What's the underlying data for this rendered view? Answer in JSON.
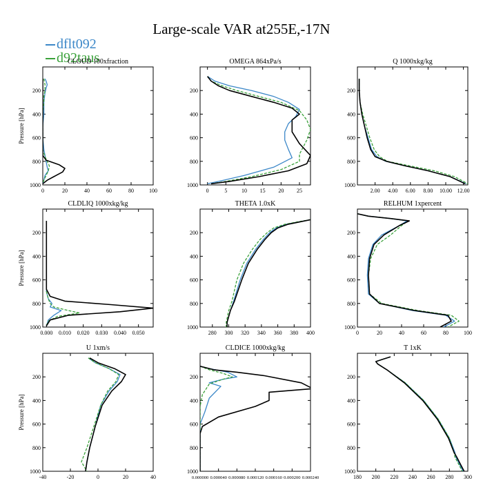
{
  "title": "Large-scale VAR at255E,-17N",
  "legend": [
    {
      "label": "dflt092",
      "color": "#3b87c8"
    },
    {
      "label": "d92taus",
      "color": "#3aa13a"
    }
  ],
  "series_colors": [
    "#3b87c8",
    "#3aa13a",
    "#000000"
  ],
  "chart_data": [
    {
      "type": "line",
      "title": "CLOUD  100xfraction",
      "ylabel": "Pressure [hPa]",
      "xlim": [
        0,
        100
      ],
      "ylim": [
        1000,
        0
      ],
      "xticks": [
        "0",
        "20",
        "40",
        "60",
        "80",
        "100"
      ],
      "yticks": [
        "200",
        "400",
        "600",
        "800",
        "1000"
      ],
      "series": [
        {
          "x": [
            2,
            3,
            4,
            3,
            2,
            1,
            1,
            0,
            0,
            1,
            2,
            3,
            4,
            5,
            2,
            1,
            0
          ],
          "y": [
            100,
            120,
            150,
            180,
            220,
            300,
            400,
            500,
            600,
            700,
            750,
            800,
            850,
            880,
            920,
            960,
            990
          ]
        },
        {
          "x": [
            1,
            2,
            2,
            1,
            1,
            0,
            0,
            0,
            0,
            2,
            4,
            6,
            5,
            3,
            1,
            0
          ],
          "y": [
            100,
            150,
            200,
            250,
            300,
            400,
            500,
            600,
            700,
            760,
            800,
            840,
            880,
            920,
            960,
            990
          ]
        },
        {
          "x": [
            0,
            0,
            0,
            0,
            0,
            0,
            3,
            9,
            15,
            20,
            18,
            10,
            4,
            0
          ],
          "y": [
            100,
            300,
            500,
            600,
            700,
            750,
            790,
            810,
            830,
            860,
            890,
            930,
            960,
            990
          ]
        }
      ]
    },
    {
      "type": "line",
      "title": "OMEGA  864xPa/s",
      "ylabel": "",
      "xlim": [
        -2,
        28
      ],
      "ylim": [
        1000,
        0
      ],
      "xticks": [
        "0",
        "5",
        "10",
        "15",
        "20",
        "25"
      ],
      "yticks": [
        "200",
        "400",
        "600",
        "800",
        "1000"
      ],
      "series": [
        {
          "x": [
            0,
            2,
            6,
            12,
            18,
            22,
            25,
            24,
            22,
            21,
            21,
            22,
            23,
            18,
            10,
            3,
            0
          ],
          "y": [
            80,
            120,
            160,
            200,
            250,
            300,
            360,
            420,
            480,
            550,
            620,
            700,
            770,
            850,
            920,
            970,
            990
          ]
        },
        {
          "x": [
            0,
            1,
            4,
            8,
            14,
            20,
            25,
            27,
            28,
            27,
            26,
            25,
            25,
            20,
            12,
            5,
            1
          ],
          "y": [
            80,
            120,
            160,
            200,
            250,
            300,
            370,
            450,
            530,
            620,
            680,
            740,
            800,
            870,
            930,
            970,
            990
          ]
        },
        {
          "x": [
            0,
            1,
            3,
            6,
            12,
            18,
            23,
            25,
            23,
            23,
            25,
            28,
            27,
            22,
            14,
            6,
            1
          ],
          "y": [
            80,
            120,
            160,
            200,
            250,
            300,
            350,
            400,
            450,
            550,
            650,
            750,
            820,
            880,
            930,
            970,
            990
          ]
        }
      ]
    },
    {
      "type": "line",
      "title": "Q  1000xkg/kg",
      "ylabel": "",
      "xlim": [
        0,
        12.5
      ],
      "ylim": [
        1000,
        0
      ],
      "xticks": [
        "2.00",
        "4.00",
        "6.00",
        "8.00",
        "10.00",
        "12.00"
      ],
      "yticks": [
        "200",
        "400",
        "600",
        "800",
        "1000"
      ],
      "series": [
        {
          "x": [
            0.2,
            0.2,
            0.3,
            0.5,
            0.8,
            1.2,
            1.6,
            2.2,
            3.2,
            5.5,
            8.0,
            10.5,
            12.3
          ],
          "y": [
            100,
            200,
            300,
            400,
            500,
            600,
            700,
            760,
            800,
            840,
            880,
            930,
            990
          ]
        },
        {
          "x": [
            0.2,
            0.2,
            0.3,
            0.6,
            1.0,
            1.4,
            1.9,
            2.5,
            3.4,
            6.0,
            8.7,
            11.0,
            12.5
          ],
          "y": [
            100,
            200,
            300,
            400,
            500,
            600,
            700,
            760,
            800,
            840,
            880,
            930,
            990
          ]
        },
        {
          "x": [
            0.2,
            0.2,
            0.3,
            0.5,
            0.8,
            1.1,
            1.5,
            2.0,
            3.3,
            5.5,
            8.0,
            10.5,
            12.2
          ],
          "y": [
            100,
            200,
            300,
            400,
            500,
            600,
            700,
            760,
            800,
            840,
            880,
            930,
            990
          ]
        }
      ]
    },
    {
      "type": "line",
      "title": "CLDLIQ  1000xkg/kg",
      "ylabel": "Pressure [hPa]",
      "xlim": [
        -0.002,
        0.058
      ],
      "ylim": [
        1000,
        0
      ],
      "xticks": [
        "0.000",
        "0.010",
        "0.020",
        "0.030",
        "0.040",
        "0.050"
      ],
      "yticks": [
        "200",
        "400",
        "600",
        "800",
        "1000"
      ],
      "series": [
        {
          "x": [
            0,
            0,
            0,
            0.001,
            0.003,
            0.002,
            0.008,
            0.004,
            0.001,
            0
          ],
          "y": [
            100,
            400,
            700,
            760,
            800,
            830,
            860,
            900,
            940,
            990
          ]
        },
        {
          "x": [
            0,
            0,
            0,
            0.001,
            0.002,
            0.004,
            0.012,
            0.018,
            0.006,
            0.001,
            0
          ],
          "y": [
            100,
            400,
            700,
            760,
            800,
            830,
            860,
            880,
            910,
            950,
            990
          ]
        },
        {
          "x": [
            0,
            0,
            0,
            0.002,
            0.01,
            0.035,
            0.058,
            0.04,
            0.012,
            0.002,
            0
          ],
          "y": [
            100,
            400,
            680,
            740,
            780,
            810,
            840,
            870,
            900,
            940,
            990
          ]
        }
      ]
    },
    {
      "type": "line",
      "title": "THETA  1.0xK",
      "ylabel": "",
      "xlim": [
        265,
        400
      ],
      "ylim": [
        1000,
        0
      ],
      "xticks": [
        "280",
        "300",
        "320",
        "340",
        "360",
        "380",
        "400"
      ],
      "yticks": [
        "200",
        "400",
        "600",
        "800",
        "1000"
      ],
      "series": [
        {
          "x": [
            400,
            385,
            370,
            358,
            350,
            342,
            333,
            322,
            314,
            306,
            302,
            298,
            298
          ],
          "y": [
            90,
            110,
            130,
            160,
            200,
            260,
            340,
            460,
            600,
            780,
            860,
            960,
            1000
          ]
        },
        {
          "x": [
            400,
            383,
            368,
            355,
            347,
            338,
            329,
            318,
            310,
            304,
            300,
            297,
            297
          ],
          "y": [
            90,
            110,
            130,
            160,
            200,
            260,
            340,
            460,
            600,
            780,
            860,
            960,
            1000
          ]
        },
        {
          "x": [
            400,
            386,
            372,
            360,
            352,
            344,
            335,
            324,
            316,
            307,
            302,
            298,
            298
          ],
          "y": [
            90,
            110,
            130,
            160,
            200,
            260,
            340,
            460,
            600,
            780,
            860,
            960,
            1000
          ]
        }
      ]
    },
    {
      "type": "line",
      "title": "RELHUM  1xpercent",
      "ylabel": "",
      "xlim": [
        0,
        100
      ],
      "ylim": [
        1000,
        0
      ],
      "xticks": [
        "0",
        "20",
        "40",
        "60",
        "80",
        "100"
      ],
      "yticks": [
        "200",
        "400",
        "600",
        "800",
        "1000"
      ],
      "series": [
        {
          "x": [
            0,
            10,
            30,
            45,
            38,
            22,
            14,
            10,
            9,
            10,
            20,
            50,
            80,
            88,
            78
          ],
          "y": [
            40,
            60,
            80,
            100,
            140,
            220,
            300,
            420,
            560,
            720,
            800,
            860,
            900,
            950,
            1000
          ]
        },
        {
          "x": [
            0,
            10,
            30,
            46,
            40,
            30,
            18,
            12,
            10,
            11,
            22,
            55,
            85,
            92,
            82
          ],
          "y": [
            40,
            60,
            80,
            100,
            140,
            220,
            300,
            420,
            560,
            720,
            800,
            860,
            900,
            950,
            1000
          ]
        },
        {
          "x": [
            0,
            10,
            30,
            47,
            38,
            24,
            15,
            11,
            10,
            11,
            20,
            52,
            82,
            85,
            75
          ],
          "y": [
            40,
            60,
            80,
            100,
            140,
            220,
            300,
            420,
            560,
            720,
            800,
            860,
            900,
            950,
            1000
          ]
        }
      ]
    },
    {
      "type": "line",
      "title": "U  1xm/s",
      "ylabel": "Pressure [hPa]",
      "xlim": [
        -40,
        40
      ],
      "ylim": [
        1000,
        0
      ],
      "xticks": [
        "-40",
        "-20",
        "0",
        "20",
        "40"
      ],
      "yticks": [
        "200",
        "400",
        "600",
        "800",
        "1000"
      ],
      "series": [
        {
          "x": [
            -7,
            -2,
            8,
            16,
            14,
            8,
            2,
            -2,
            -6,
            -8,
            -9
          ],
          "y": [
            40,
            80,
            130,
            180,
            240,
            320,
            440,
            620,
            800,
            920,
            1000
          ]
        },
        {
          "x": [
            -7,
            -2,
            8,
            15,
            13,
            7,
            2,
            -3,
            -8,
            -12,
            -8
          ],
          "y": [
            40,
            80,
            130,
            180,
            240,
            320,
            440,
            620,
            800,
            920,
            1000
          ]
        },
        {
          "x": [
            -6,
            0,
            12,
            20,
            17,
            10,
            3,
            -2,
            -6,
            -8,
            -9
          ],
          "y": [
            40,
            80,
            130,
            180,
            240,
            320,
            440,
            620,
            800,
            920,
            1000
          ]
        }
      ]
    },
    {
      "type": "line",
      "title": "CLDICE  1000xkg/kg",
      "ylabel": "",
      "xlim": [
        0,
        0.00024
      ],
      "ylim": [
        1000,
        0
      ],
      "xticks": [
        "0.000000",
        "0.000040",
        "0.000080",
        "0.000120",
        "0.000160",
        "0.000200",
        "0.000240"
      ],
      "yticks": [
        "200",
        "400",
        "600",
        "800",
        "1000"
      ],
      "series": [
        {
          "x": [
            0,
            2e-05,
            6e-05,
            8e-05,
            5e-05,
            2e-05,
            4.5e-05,
            2e-05,
            1e-05,
            0,
            0,
            0
          ],
          "y": [
            110,
            130,
            160,
            200,
            220,
            250,
            280,
            380,
            500,
            600,
            700,
            1000
          ]
        },
        {
          "x": [
            0,
            2e-05,
            5e-05,
            7e-05,
            5e-05,
            2e-05,
            5e-06,
            0,
            0,
            0
          ],
          "y": [
            110,
            140,
            170,
            200,
            220,
            260,
            350,
            450,
            550,
            1000
          ]
        },
        {
          "x": [
            0,
            3e-05,
            8e-05,
            0.00014,
            0.00022,
            0.000245,
            0.00015,
            0.00015,
            0.00012,
            4e-05,
            5e-06,
            0,
            0
          ],
          "y": [
            110,
            140,
            160,
            190,
            250,
            300,
            330,
            400,
            450,
            540,
            620,
            680,
            1000
          ]
        }
      ]
    },
    {
      "type": "line",
      "title": "T  1xK",
      "ylabel": "",
      "xlim": [
        180,
        300
      ],
      "ylim": [
        1000,
        0
      ],
      "xticks": [
        "180",
        "200",
        "220",
        "240",
        "260",
        "280",
        "300"
      ],
      "yticks": [
        "200",
        "400",
        "600",
        "800",
        "1000"
      ],
      "series": [
        {
          "x": [
            216,
            208,
            200,
            202,
            212,
            232,
            252,
            268,
            280,
            286,
            287,
            291,
            295
          ],
          "y": [
            30,
            50,
            70,
            90,
            140,
            250,
            400,
            560,
            720,
            840,
            880,
            940,
            1000
          ]
        },
        {
          "x": [
            216,
            208,
            200,
            202,
            212,
            232,
            252,
            268,
            280,
            285,
            286,
            290,
            294
          ],
          "y": [
            30,
            50,
            70,
            90,
            140,
            250,
            400,
            560,
            720,
            840,
            880,
            940,
            1000
          ]
        },
        {
          "x": [
            216,
            208,
            200,
            202,
            212,
            231,
            251,
            267,
            279,
            285,
            288,
            292,
            296
          ],
          "y": [
            30,
            50,
            70,
            90,
            140,
            250,
            400,
            560,
            720,
            840,
            880,
            940,
            1000
          ]
        }
      ]
    }
  ]
}
